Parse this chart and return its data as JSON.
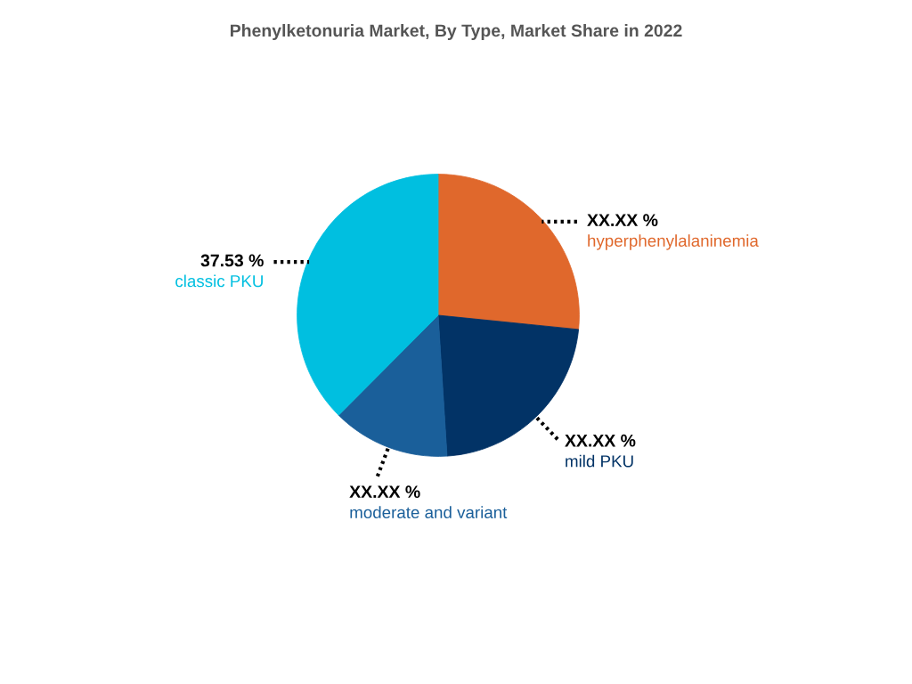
{
  "chart_data": {
    "type": "pie",
    "title": "Phenylketonuria Market, By Type, Market Share in 2022",
    "categories": [
      "hyperphenylalaninemia",
      "mild PKU",
      "moderate and variant",
      "classic PKU"
    ],
    "values": [
      26.6,
      22.4,
      13.47,
      37.53
    ],
    "colors": [
      "#e0682c",
      "#023366",
      "#1a5f9a",
      "#00bfe0"
    ],
    "value_labels": [
      "XX.XX %",
      "XX.XX %",
      "XX.XX %",
      "37.53 %"
    ]
  }
}
